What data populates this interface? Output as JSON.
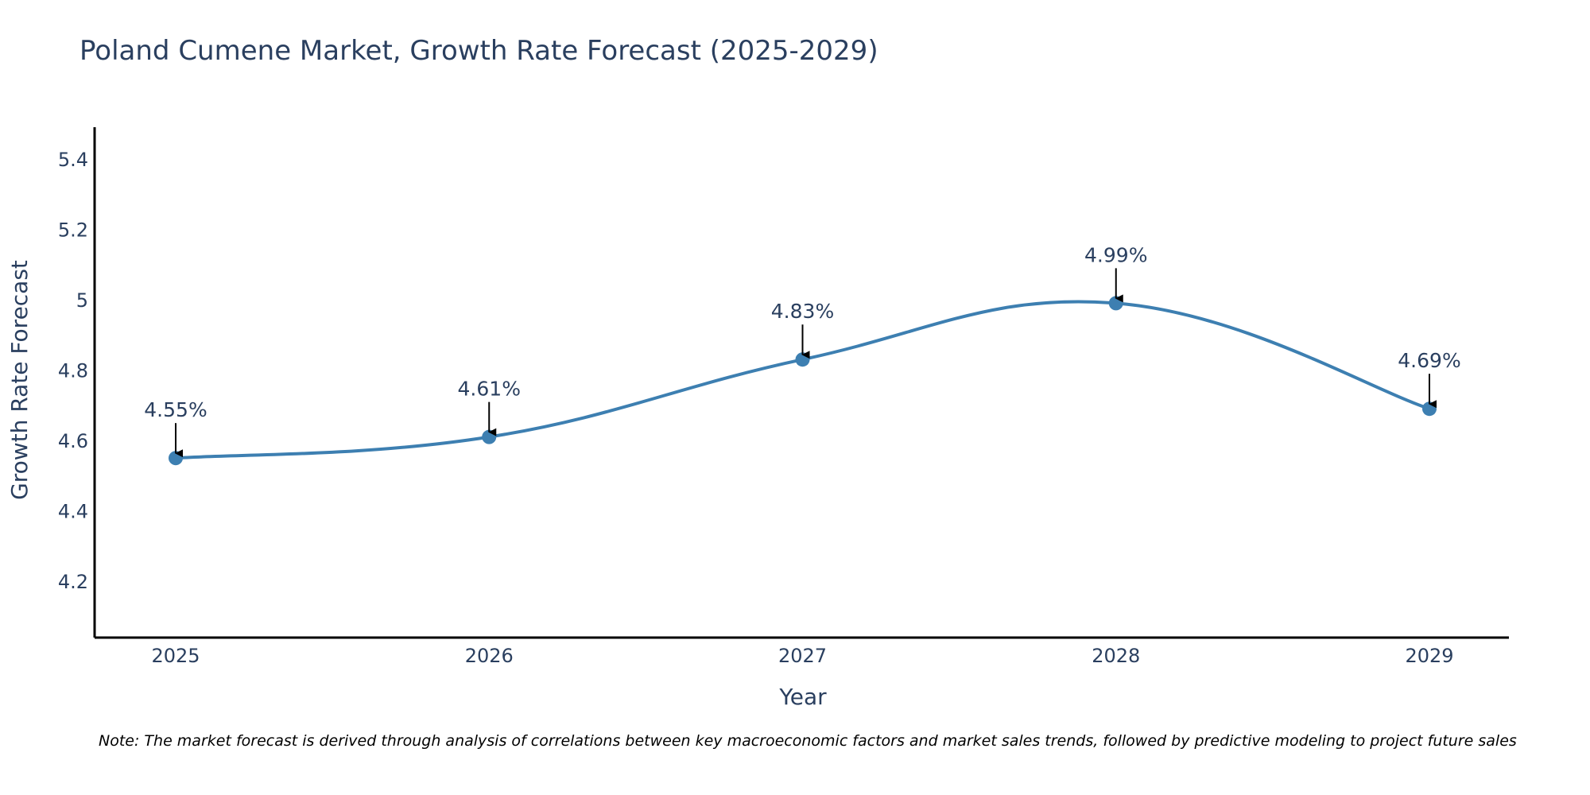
{
  "chart_data": {
    "type": "line",
    "title": "Poland Cumene Market, Growth Rate Forecast (2025-2029)",
    "xlabel": "Year",
    "ylabel": "Growth Rate Forecast",
    "categories": [
      "2025",
      "2026",
      "2027",
      "2028",
      "2029"
    ],
    "series": [
      {
        "name": "Growth Rate Forecast",
        "values": [
          4.55,
          4.61,
          4.83,
          4.99,
          4.69
        ],
        "labels": [
          "4.55%",
          "4.61%",
          "4.83%",
          "4.99%",
          "4.69%"
        ]
      }
    ],
    "ylim": [
      4.04,
      5.49
    ],
    "yticks": [
      4.2,
      4.4,
      4.6,
      4.8,
      5,
      5.2,
      5.4
    ],
    "ytick_labels": [
      "4.2",
      "4.4",
      "4.6",
      "4.8",
      "5",
      "5.2",
      "5.4"
    ],
    "grid": false,
    "line_color": "#3d7fb1",
    "marker_color": "#3d7fb1",
    "annotation_arrow_color": "#000000",
    "text_color": "#2a3f5f"
  },
  "note": "Note: The market forecast is derived through analysis of correlations between key macroeconomic factors and market sales trends, followed by predictive modeling to project future sales"
}
